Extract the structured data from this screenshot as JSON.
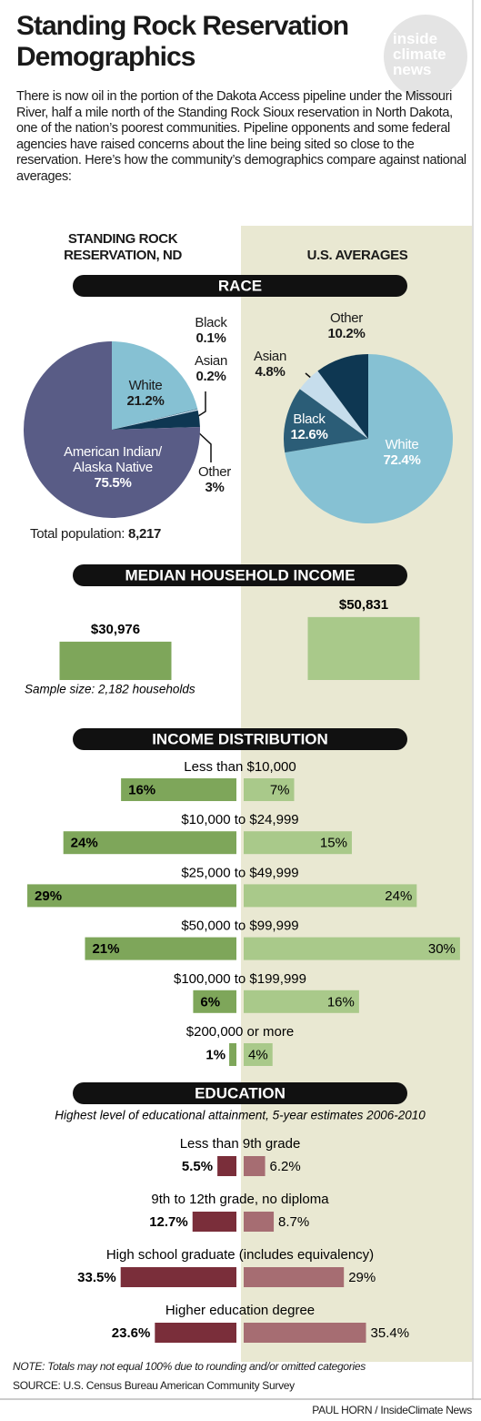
{
  "header": {
    "title": "Standing Rock Reservation Demographics",
    "logo": "inside climate news",
    "intro": "There is now oil in the portion of the Dakota Access pipeline under the Missouri River, half a mile north of the Standing Rock Sioux reservation in North Dakota, one of the nation’s poorest communities. Pipeline opponents and some federal agencies have raised concerns about the line being sited so close to the reservation. Here’s how the community’s demographics compare against national averages:"
  },
  "columns": [
    "STANDING ROCK RESERVATION, ND",
    "U.S. AVERAGES"
  ],
  "chart_data": [
    {
      "type": "pie",
      "title": "RACE",
      "categories": [
        "White",
        "Black",
        "Asian",
        "Other",
        "American Indian/ Alaska Native"
      ],
      "values": [
        21.2,
        0.1,
        0.2,
        3,
        75.5
      ],
      "value_labels": [
        "21.2%",
        "0.1%",
        "0.2%",
        "3%",
        "75.5%"
      ],
      "colors": [
        "#86c1d3",
        "#2b5d77",
        "#c6ddec",
        "#0e3752",
        "#595c86"
      ],
      "note_label": "Total population:",
      "note_value": "8,217"
    },
    {
      "type": "pie",
      "categories": [
        "White",
        "Black",
        "Asian",
        "Other"
      ],
      "values": [
        72.4,
        12.6,
        4.8,
        10.2
      ],
      "value_labels": [
        "72.4%",
        "12.6%",
        "4.8%",
        "10.2%"
      ],
      "colors": [
        "#86c1d3",
        "#2b5d77",
        "#c6ddec",
        "#0e3752"
      ]
    },
    {
      "type": "bar",
      "title": "MEDIAN HOUSEHOLD INCOME",
      "values": [
        30976,
        50831
      ],
      "value_labels": [
        "$30,976",
        "$50,831"
      ],
      "colors": [
        "#7ea65a",
        "#a9c98a"
      ],
      "note": "Sample size: 2,182 households"
    },
    {
      "type": "diverging-bar",
      "title": "INCOME DISTRIBUTION",
      "categories": [
        "Less than $10,000",
        "$10,000 to $24,999",
        "$25,000 to $49,999",
        "$50,000 to $99,999",
        "$100,000 to $199,999",
        "$200,000 or more"
      ],
      "series": [
        {
          "color": "#7ea65a",
          "values": [
            16,
            24,
            29,
            21,
            6,
            1
          ],
          "value_labels": [
            "16%",
            "24%",
            "29%",
            "21%",
            "6%",
            "1%"
          ]
        },
        {
          "color": "#a9c98a",
          "values": [
            7,
            15,
            24,
            30,
            16,
            4
          ],
          "value_labels": [
            "7%",
            "15%",
            "24%",
            "30%",
            "16%",
            "4%"
          ]
        }
      ]
    },
    {
      "type": "diverging-bar",
      "title": "EDUCATION",
      "subtitle": "Highest level of educational attainment, 5-year estimates 2006-2010",
      "categories": [
        "Less than 9th grade",
        "9th to 12th grade, no diploma",
        "High school graduate (includes equivalency)",
        "Higher education degree"
      ],
      "series": [
        {
          "color": "#7a2e3a",
          "values": [
            5.5,
            12.7,
            33.5,
            23.6
          ],
          "value_labels": [
            "5.5%",
            "12.7%",
            "33.5%",
            "23.6%"
          ]
        },
        {
          "color": "#a66d72",
          "values": [
            6.2,
            8.7,
            29,
            35.4
          ],
          "value_labels": [
            "6.2%",
            "8.7%",
            "29%",
            "35.4%"
          ]
        }
      ]
    }
  ],
  "footer": {
    "note": "NOTE: Totals may not equal 100% due to rounding and/or omitted categories",
    "source": "SOURCE: U.S. Census Bureau American Community Survey",
    "credit": "PAUL HORN / InsideClimate News"
  }
}
